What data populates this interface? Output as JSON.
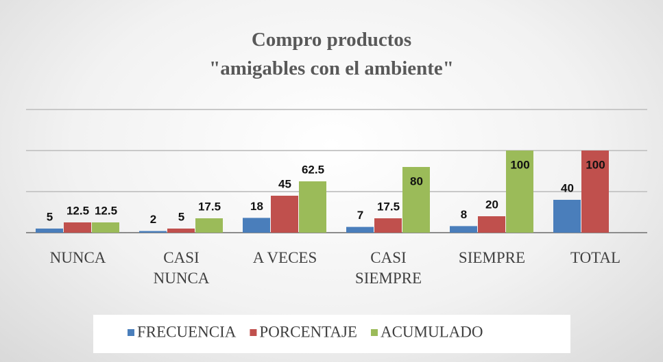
{
  "chart_data": {
    "type": "bar",
    "title": [
      "Compro productos",
      "\"amigables con el ambiente\""
    ],
    "categories": [
      "NUNCA",
      "CASI NUNCA",
      "A VECES",
      "CASI SIEMPRE",
      "SIEMPRE",
      "TOTAL"
    ],
    "series": [
      {
        "name": "FRECUENCIA",
        "color": "#4a7ebb",
        "values": [
          5,
          2,
          18,
          7,
          8,
          40
        ]
      },
      {
        "name": "PORCENTAJE",
        "color": "#c0504d",
        "values": [
          12.5,
          5,
          45,
          17.5,
          20,
          100
        ]
      },
      {
        "name": "ACUMULADO",
        "color": "#9bbb59",
        "values": [
          12.5,
          17.5,
          62.5,
          80,
          100,
          null
        ]
      }
    ],
    "ylim": [
      0,
      150
    ],
    "yticks": [
      0,
      50,
      100,
      150
    ],
    "grid": true,
    "legend": "bottom"
  }
}
